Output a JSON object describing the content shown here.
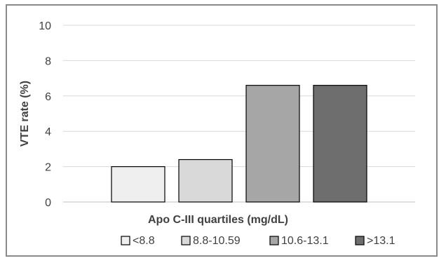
{
  "chart_data": {
    "type": "bar",
    "title": "",
    "xlabel": "Apo C-III quartiles (mg/dL)",
    "ylabel": "VTE rate (%)",
    "ylim": [
      0,
      10
    ],
    "yticks": [
      0,
      2,
      4,
      6,
      8,
      10
    ],
    "grid": true,
    "legend_position": "bottom",
    "series": [
      {
        "name": "<8.8",
        "value": 2.0,
        "color": "#efefef"
      },
      {
        "name": "8.8-10.59",
        "value": 2.4,
        "color": "#d9d9d9"
      },
      {
        "name": "10.6-13.1",
        "value": 6.6,
        "color": "#a6a6a6"
      },
      {
        "name": ">13.1",
        "value": 6.6,
        "color": "#6e6e6e"
      }
    ]
  }
}
